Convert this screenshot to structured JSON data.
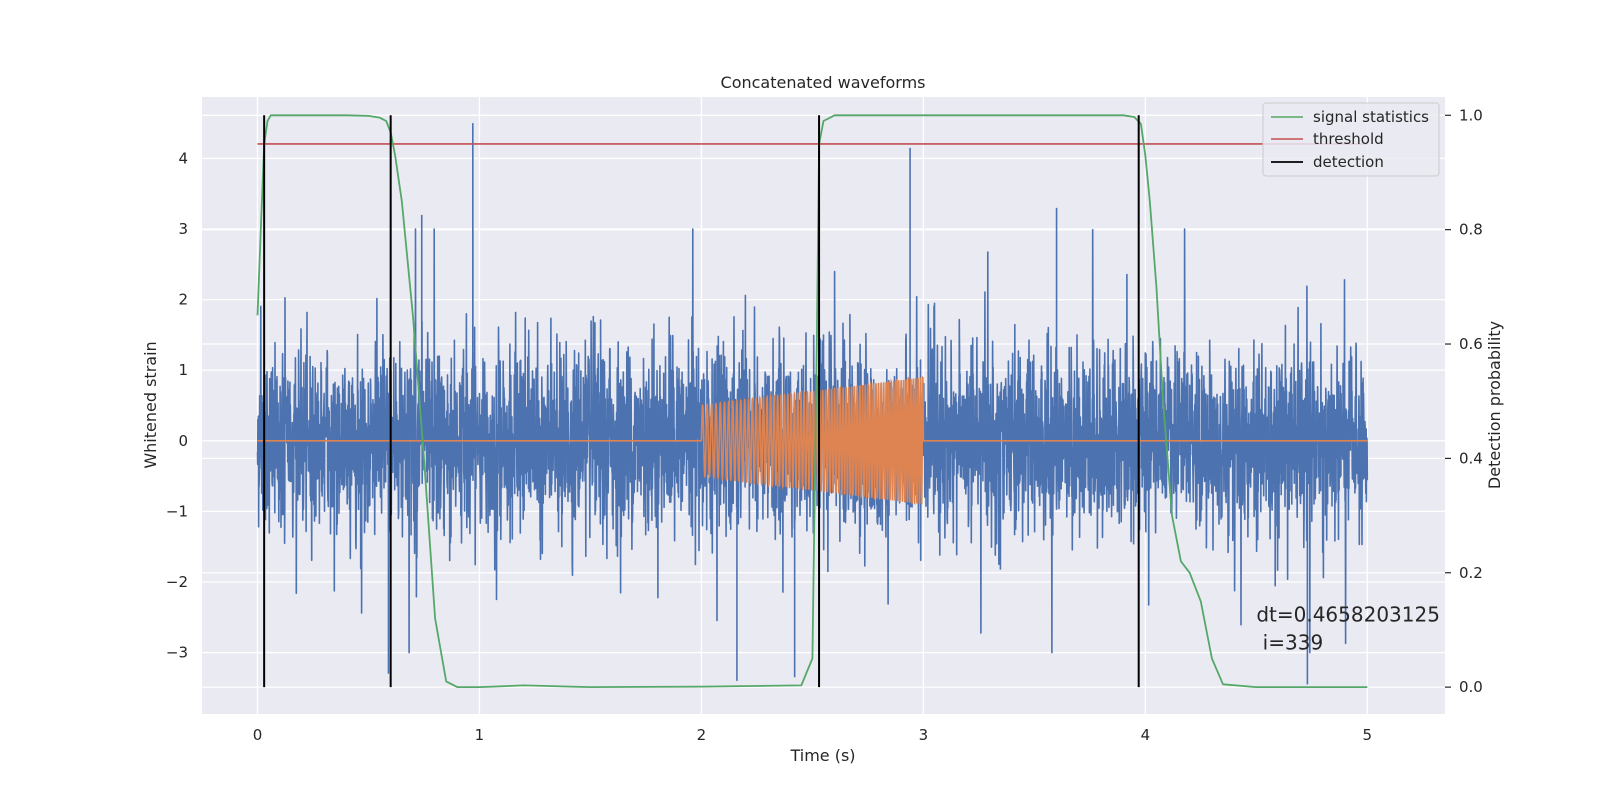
{
  "chart_data": {
    "type": "line",
    "title": "Concatenated waveforms",
    "xlabel": "Time (s)",
    "ylabel": "Whitened strain",
    "ylabel_right": "Detection probability",
    "xlim": [
      -0.25,
      5.35
    ],
    "ylim": [
      -3.87,
      4.87
    ],
    "ylim_right": [
      -0.047,
      1.032
    ],
    "x_ticks": [
      0,
      1,
      2,
      3,
      4,
      5
    ],
    "y_ticks": [
      -3,
      -2,
      -1,
      0,
      1,
      2,
      3,
      4
    ],
    "y_ticks_right": [
      0.0,
      0.2,
      0.4,
      0.6,
      0.8,
      1.0
    ],
    "x_tick_labels": [
      "0",
      "1",
      "2",
      "3",
      "4",
      "5"
    ],
    "y_tick_labels": [
      "−3",
      "−2",
      "−1",
      "0",
      "1",
      "2",
      "3",
      "4"
    ],
    "y_tick_labels_right": [
      "0.0",
      "0.2",
      "0.4",
      "0.6",
      "0.8",
      "1.0"
    ],
    "grid": true,
    "legend_position": "top-right",
    "legend": [
      {
        "label": "signal statistics",
        "color": "#55a868"
      },
      {
        "label": "threshold",
        "color": "#c44e52"
      },
      {
        "label": "detection",
        "color": "#000000"
      }
    ],
    "series": [
      {
        "role": "whitened-noise",
        "axis": "left",
        "color": "#4c72b0",
        "x_range": [
          0,
          5
        ],
        "envelope_typical": 1.3,
        "peaks": [
          {
            "x": 0.97,
            "y": 4.5
          },
          {
            "x": 0.97,
            "y": 3.0
          },
          {
            "x": 0.74,
            "y": 3.2
          },
          {
            "x": 2.94,
            "y": 4.15
          },
          {
            "x": 3.6,
            "y": 3.3
          },
          {
            "x": 2.16,
            "y": -3.4
          },
          {
            "x": 2.42,
            "y": -3.35
          },
          {
            "x": 4.73,
            "y": -3.45
          },
          {
            "x": 0.59,
            "y": -3.3
          }
        ]
      },
      {
        "role": "injected-chirp",
        "axis": "left",
        "color": "#dd8452",
        "start": 2.0,
        "end": 3.0,
        "amplitude_start": 0.5,
        "amplitude_end": 0.9,
        "freq_start": 48,
        "freq_end": 95
      },
      {
        "role": "signal-statistics",
        "axis": "right",
        "color": "#55a868",
        "x": [
          0,
          0.015,
          0.03,
          0.045,
          0.06,
          0.08,
          0.1,
          0.2,
          0.4,
          0.5,
          0.55,
          0.58,
          0.6,
          0.62,
          0.65,
          0.7,
          0.75,
          0.8,
          0.85,
          0.9,
          1.0,
          1.2,
          1.5,
          2.0,
          2.45,
          2.5,
          2.52,
          2.53,
          2.55,
          2.6,
          3.0,
          3.5,
          3.9,
          3.95,
          3.98,
          4.0,
          4.02,
          4.05,
          4.08,
          4.12,
          4.16,
          4.2,
          4.25,
          4.3,
          4.35,
          4.5,
          5.0
        ],
        "y": [
          0.65,
          0.8,
          0.95,
          0.99,
          1.0,
          1.0,
          1.0,
          1.0,
          1.0,
          0.999,
          0.996,
          0.99,
          0.97,
          0.93,
          0.85,
          0.65,
          0.4,
          0.12,
          0.01,
          0.0,
          0.0,
          0.003,
          0.0,
          0.001,
          0.003,
          0.05,
          0.6,
          0.95,
          0.99,
          1.0,
          1.0,
          1.0,
          1.0,
          0.997,
          0.985,
          0.93,
          0.85,
          0.7,
          0.5,
          0.3,
          0.22,
          0.2,
          0.15,
          0.05,
          0.005,
          0.0,
          0.0
        ]
      },
      {
        "role": "threshold",
        "axis": "right",
        "color": "#c44e52",
        "x": [
          0,
          5
        ],
        "y": [
          0.95,
          0.95
        ]
      }
    ],
    "detections": [
      0.03,
      0.6,
      2.53,
      3.97
    ],
    "detection_span_right": [
      0.0,
      1.0
    ],
    "annotation": {
      "line1": "dt=0.4658203125",
      "line2": " i=339",
      "x": 4.5,
      "y_right": 0.115
    }
  }
}
